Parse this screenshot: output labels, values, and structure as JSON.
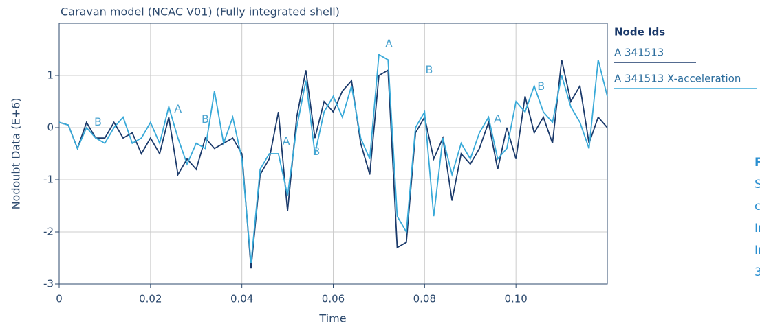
{
  "chart_data": {
    "type": "line",
    "title": "Caravan model (NCAC V01) (Fully integrated shell)",
    "x_label": "Time",
    "y_label": "Nodoubt Data (E+6)",
    "legend_title": "Node Ids",
    "x": [
      0,
      0.002,
      0.004,
      0.006,
      0.008,
      0.01,
      0.012,
      0.014,
      0.016,
      0.018,
      0.02,
      0.022,
      0.024,
      0.026,
      0.028,
      0.03,
      0.032,
      0.034,
      0.036,
      0.038,
      0.04,
      0.042,
      0.044,
      0.046,
      0.048,
      0.05,
      0.052,
      0.054,
      0.056,
      0.058,
      0.06,
      0.062,
      0.064,
      0.066,
      0.068,
      0.07,
      0.072,
      0.074,
      0.076,
      0.078,
      0.08,
      0.082,
      0.084,
      0.086,
      0.088,
      0.09,
      0.092,
      0.094,
      0.096,
      0.098,
      0.1,
      0.102,
      0.104,
      0.106,
      0.108,
      0.11,
      0.112,
      0.114,
      0.116,
      0.118,
      0.12
    ],
    "series": [
      {
        "name": "A 341513",
        "color": "#1b3a6b",
        "values": [
          0.1,
          0.05,
          -0.4,
          0.1,
          -0.2,
          -0.2,
          0.1,
          -0.2,
          -0.1,
          -0.5,
          -0.2,
          -0.5,
          0.2,
          -0.9,
          -0.6,
          -0.8,
          -0.2,
          -0.4,
          -0.3,
          -0.2,
          -0.5,
          -2.7,
          -0.9,
          -0.6,
          0.3,
          -1.6,
          0.2,
          1.1,
          -0.2,
          0.5,
          0.3,
          0.7,
          0.9,
          -0.3,
          -0.9,
          1.0,
          1.1,
          -2.3,
          -2.2,
          -0.1,
          0.2,
          -0.6,
          -0.2,
          -1.4,
          -0.5,
          -0.7,
          -0.4,
          0.1,
          -0.8,
          0.0,
          -0.6,
          0.6,
          -0.1,
          0.2,
          -0.3,
          1.3,
          0.5,
          0.8,
          -0.3,
          0.2,
          0.0
        ]
      },
      {
        "name": "A 341513 X-acceleration",
        "color": "#38a9d8",
        "values": [
          0.1,
          0.05,
          -0.4,
          0.0,
          -0.2,
          -0.3,
          0.0,
          0.2,
          -0.3,
          -0.2,
          0.1,
          -0.3,
          0.4,
          -0.2,
          -0.7,
          -0.3,
          -0.4,
          0.7,
          -0.3,
          0.2,
          -0.6,
          -2.6,
          -0.8,
          -0.5,
          -0.5,
          -1.3,
          0.0,
          0.9,
          -0.5,
          0.3,
          0.6,
          0.2,
          0.8,
          -0.2,
          -0.6,
          1.4,
          1.3,
          -1.7,
          -2.0,
          0.0,
          0.3,
          -1.7,
          -0.2,
          -0.9,
          -0.3,
          -0.6,
          -0.1,
          0.2,
          -0.6,
          -0.4,
          0.5,
          0.3,
          0.8,
          0.3,
          0.1,
          1.0,
          0.4,
          0.1,
          -0.4,
          1.3,
          0.6
        ]
      }
    ],
    "annotations": [
      {
        "text": "B",
        "x": 0.0085,
        "y": 0.1
      },
      {
        "text": "A",
        "x": 0.026,
        "y": 0.35
      },
      {
        "text": "B",
        "x": 0.032,
        "y": 0.15
      },
      {
        "text": "A",
        "x": 0.0497,
        "y": -0.27
      },
      {
        "text": "B",
        "x": 0.0563,
        "y": -0.47
      },
      {
        "text": "A",
        "x": 0.0722,
        "y": 1.6
      },
      {
        "text": "B",
        "x": 0.081,
        "y": 1.1
      },
      {
        "text": "A",
        "x": 0.096,
        "y": 0.16
      },
      {
        "text": "B",
        "x": 0.1055,
        "y": 0.78
      }
    ],
    "side_text": [
      "F",
      "S",
      "c",
      "In",
      "In",
      "3"
    ],
    "xlim": [
      0,
      0.12
    ],
    "ylim": [
      -3,
      2
    ],
    "xticks": [
      0,
      0.02,
      0.04,
      0.06,
      0.08,
      {
        "value": 0.1,
        "label": "0.10"
      }
    ],
    "yticks": [
      -3,
      -2,
      -1,
      0,
      1
    ],
    "grid": true
  }
}
